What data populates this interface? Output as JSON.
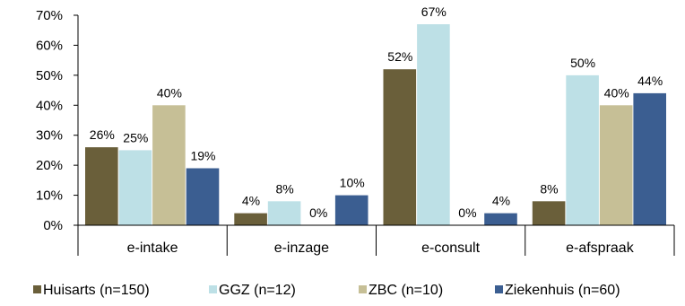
{
  "chart_data": {
    "type": "bar",
    "categories": [
      "e-intake",
      "e-inzage",
      "e-consult",
      "e-afspraak"
    ],
    "series": [
      {
        "name": "Huisarts (n=150)",
        "color": "#6a5f3a",
        "values": [
          26,
          4,
          52,
          8
        ]
      },
      {
        "name": "GGZ (n=12)",
        "color": "#bde0e6",
        "values": [
          25,
          8,
          67,
          50
        ]
      },
      {
        "name": "ZBC (n=10)",
        "color": "#c6bf96",
        "values": [
          40,
          0,
          0,
          40
        ]
      },
      {
        "name": "Ziekenhuis (n=60)",
        "color": "#3b5e91",
        "values": [
          19,
          10,
          4,
          44
        ]
      }
    ],
    "data_labels": [
      [
        "26%",
        "4%",
        "52%",
        "8%"
      ],
      [
        "25%",
        "8%",
        "67%",
        "50%"
      ],
      [
        "40%",
        "0%",
        "0%",
        "40%"
      ],
      [
        "19%",
        "10%",
        "4%",
        "44%"
      ]
    ],
    "yticks": [
      0,
      10,
      20,
      30,
      40,
      50,
      60,
      70
    ],
    "ytick_labels": [
      "0%",
      "10%",
      "20%",
      "30%",
      "40%",
      "50%",
      "60%",
      "70%"
    ],
    "ylim": [
      0,
      70
    ],
    "grid": false,
    "legend_position": "bottom"
  }
}
